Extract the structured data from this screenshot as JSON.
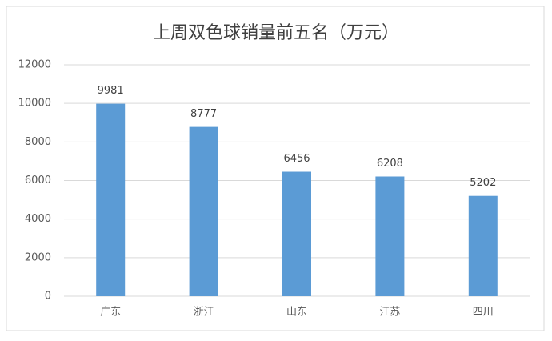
{
  "chart_data": {
    "type": "bar",
    "title": "上周双色球销量前五名（万元）",
    "categories": [
      "广东",
      "浙江",
      "山东",
      "江苏",
      "四川"
    ],
    "values": [
      9981,
      8777,
      6456,
      6208,
      5202
    ],
    "color": "#5b9bd5",
    "ylim": [
      0,
      12000
    ],
    "yticks": [
      0,
      2000,
      4000,
      6000,
      8000,
      10000,
      12000
    ],
    "grid": true
  }
}
